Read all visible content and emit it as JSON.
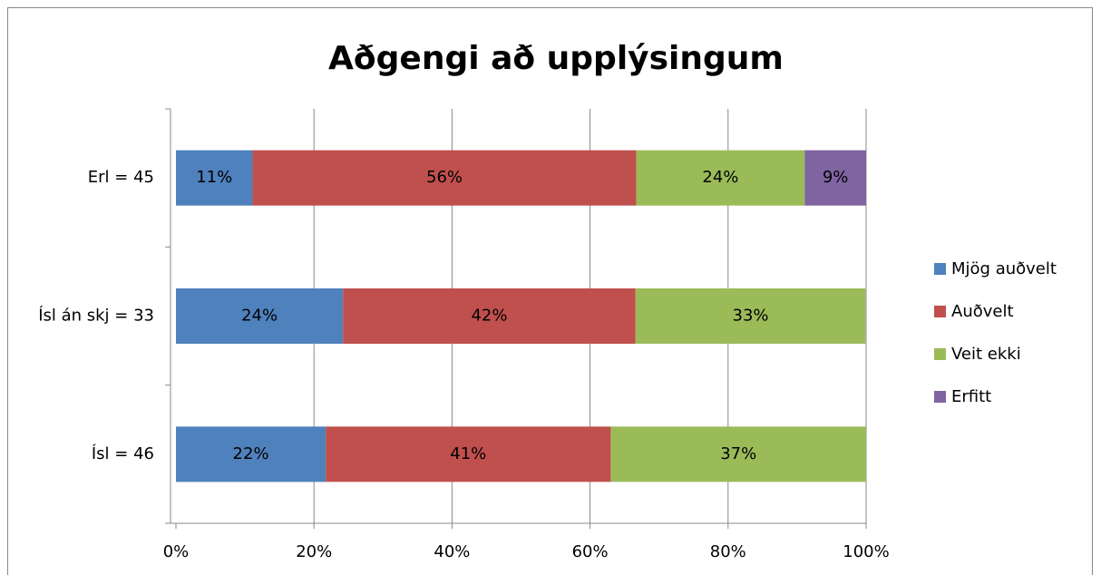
{
  "chart_data": {
    "type": "stacked_bar_horizontal",
    "title": "Aðgengi að upplýsingum",
    "categories": [
      "Erl = 45",
      "Ísl án skj = 33",
      "Ísl = 46"
    ],
    "series": [
      {
        "name": "Mjög auðvelt",
        "color": "#4f81bd",
        "values": [
          11.1,
          24.2,
          21.7
        ],
        "value_labels": [
          "11%",
          "24%",
          "22%"
        ]
      },
      {
        "name": "Auðvelt",
        "color": "#c0504d",
        "values": [
          55.6,
          42.4,
          41.3
        ],
        "value_labels": [
          "56%",
          "42%",
          "41%"
        ]
      },
      {
        "name": "Veit ekki",
        "color": "#9bbb59",
        "values": [
          24.4,
          33.3,
          37.0
        ],
        "value_labels": [
          "24%",
          "33%",
          "37%"
        ]
      },
      {
        "name": "Erfitt",
        "color": "#8064a2",
        "values": [
          8.9,
          null,
          null
        ],
        "value_labels": [
          "9%",
          null,
          null
        ]
      }
    ],
    "xlim": [
      0,
      100
    ],
    "xticks": [
      {
        "value": 0,
        "label": "0%"
      },
      {
        "value": 20,
        "label": "20%"
      },
      {
        "value": 40,
        "label": "40%"
      },
      {
        "value": 60,
        "label": "60%"
      },
      {
        "value": 80,
        "label": "80%"
      },
      {
        "value": 100,
        "label": "100%"
      }
    ],
    "grid": true,
    "legend": "right"
  }
}
